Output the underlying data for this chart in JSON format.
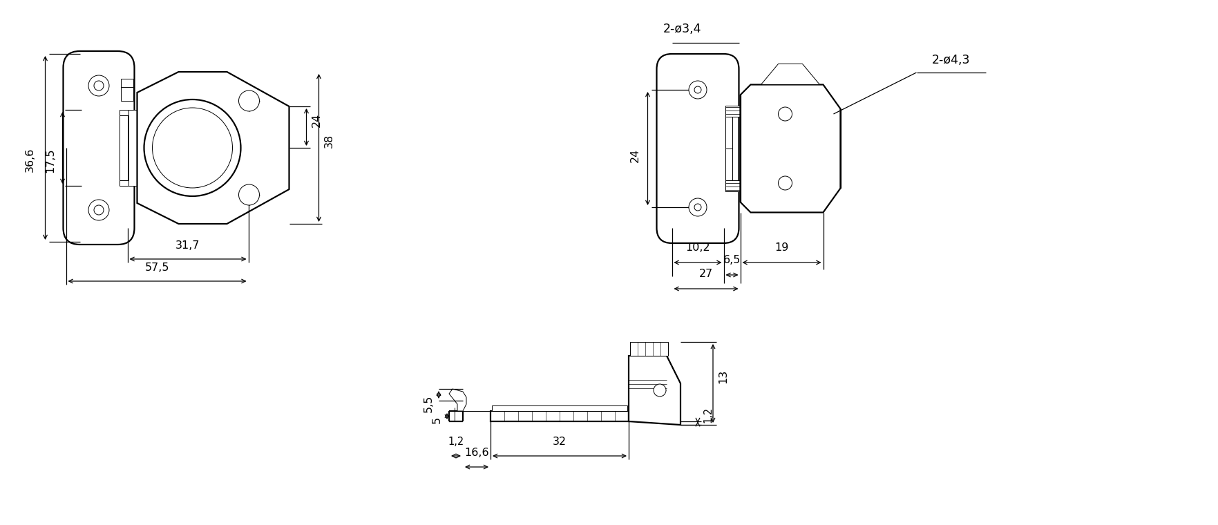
{
  "bg_color": "#ffffff",
  "lc": "#000000",
  "lw": 1.6,
  "lw_t": 0.7,
  "lw_d": 0.9,
  "fs": 11.5,
  "ann_v1": {
    "d366": "36,6",
    "d175": "17,5",
    "d317": "31,7",
    "d575": "57,5",
    "d24": "24",
    "d38": "38"
  },
  "ann_v2": {
    "d2034": "2-ø3,4",
    "d24": "24",
    "d102": "10,2",
    "d65": "6,5",
    "d19": "19",
    "d27": "27",
    "d2043": "2-ø4,3"
  },
  "ann_v3": {
    "d55": "5,5",
    "d5": "5",
    "d12a": "1,2",
    "d166": "16,6",
    "d32": "32",
    "d12b": "1,2",
    "d13": "13"
  }
}
